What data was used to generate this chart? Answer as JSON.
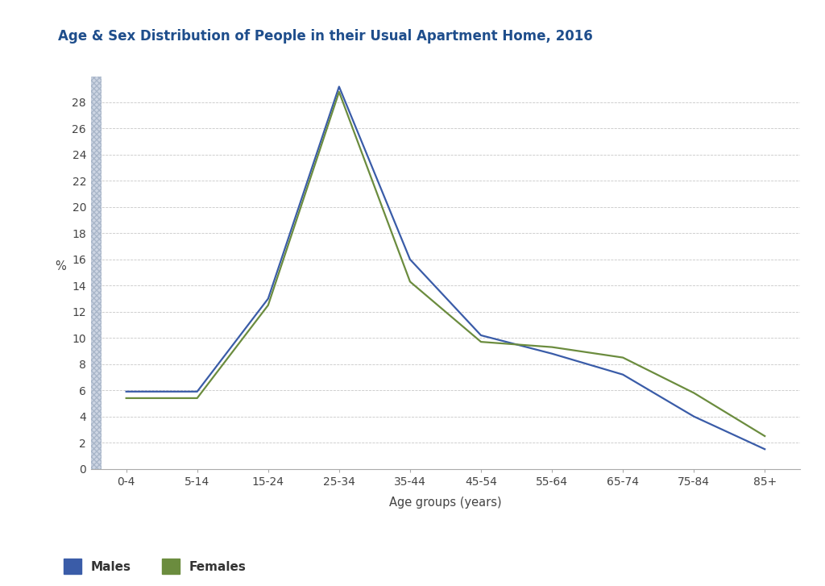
{
  "title": "Age & Sex Distribution of People in their Usual Apartment Home, 2016",
  "title_color": "#1f4e8c",
  "title_fontsize": 12,
  "xlabel": "Age groups (years)",
  "ylabel": "%",
  "categories": [
    "0-4",
    "5-14",
    "15-24",
    "25-34",
    "35-44",
    "45-54",
    "55-64",
    "65-74",
    "75-84",
    "85+"
  ],
  "males": [
    5.9,
    5.9,
    13.0,
    29.2,
    16.0,
    10.2,
    8.8,
    7.2,
    4.0,
    1.5
  ],
  "females": [
    5.4,
    5.4,
    12.5,
    28.8,
    14.3,
    9.7,
    9.3,
    8.5,
    5.8,
    2.5
  ],
  "male_color": "#3a5ca8",
  "female_color": "#6b8c3e",
  "ylim": [
    0,
    30
  ],
  "yticks": [
    0,
    2,
    4,
    6,
    8,
    10,
    12,
    14,
    16,
    18,
    20,
    22,
    24,
    26,
    28
  ],
  "background_color": "#ffffff",
  "grid_color": "#c8c8c8",
  "legend_labels": [
    "Males",
    "Females"
  ],
  "line_width": 1.6,
  "hatch_color": "#b8c4d8",
  "hatch_edge_color": "#9aaabf"
}
